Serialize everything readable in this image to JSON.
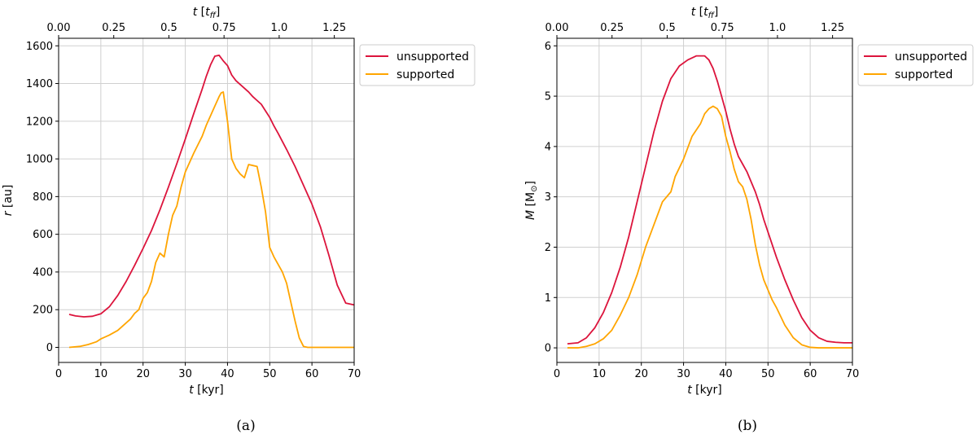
{
  "chart_data": [
    {
      "type": "line",
      "panel": "a",
      "caption": "(a)",
      "xlabel": "t [kyr]",
      "x2label": "t [t_ff]",
      "ylabel": "r [au]",
      "xlim": [
        0,
        70
      ],
      "ylim": [
        -80,
        1640
      ],
      "x2lim": [
        0,
        1.34
      ],
      "xticks": [
        0,
        10,
        20,
        30,
        40,
        50,
        60,
        70
      ],
      "x2ticks": [
        0.0,
        0.25,
        0.5,
        0.75,
        1.0,
        1.25
      ],
      "x2ticklabels": [
        "0.00",
        "0.25",
        "0.5",
        "0.75",
        "1.0",
        "1.25"
      ],
      "yticks": [
        0,
        200,
        400,
        600,
        800,
        1000,
        1200,
        1400,
        1600
      ],
      "grid": true,
      "legend": "top-right, outside",
      "series": [
        {
          "name": "unsupported",
          "color": "#dc143c",
          "x": [
            2.5,
            4,
            6,
            8,
            10,
            12,
            14,
            16,
            18,
            20,
            22,
            24,
            26,
            28,
            30,
            32,
            34,
            35,
            36,
            37,
            38,
            39,
            40,
            41,
            42,
            43,
            44,
            45,
            46,
            47,
            48,
            49,
            50,
            51,
            52,
            54,
            56,
            58,
            60,
            62,
            64,
            66,
            68,
            70
          ],
          "y": [
            175,
            167,
            162,
            165,
            178,
            215,
            275,
            350,
            435,
            525,
            620,
            730,
            850,
            975,
            1105,
            1240,
            1370,
            1440,
            1500,
            1545,
            1550,
            1520,
            1495,
            1445,
            1415,
            1395,
            1375,
            1355,
            1330,
            1310,
            1290,
            1255,
            1220,
            1175,
            1135,
            1050,
            960,
            860,
            760,
            640,
            490,
            330,
            235,
            225
          ]
        },
        {
          "name": "supported",
          "color": "#ffa500",
          "x": [
            2.5,
            5,
            7,
            9,
            10,
            12,
            14,
            15,
            16,
            17,
            18,
            19,
            20,
            21,
            22,
            23,
            24,
            25,
            26,
            27,
            28,
            29,
            30,
            32,
            34,
            35,
            36,
            37,
            38,
            38.5,
            39,
            40,
            41,
            42,
            43,
            44,
            45,
            46,
            47,
            48,
            49,
            50,
            51,
            52,
            53,
            54,
            55,
            56,
            57,
            58,
            59,
            60,
            62,
            65,
            68,
            70
          ],
          "y": [
            0,
            5,
            15,
            30,
            45,
            65,
            90,
            110,
            130,
            150,
            180,
            200,
            260,
            290,
            350,
            450,
            500,
            480,
            600,
            700,
            750,
            850,
            930,
            1030,
            1120,
            1180,
            1230,
            1280,
            1330,
            1350,
            1355,
            1200,
            1000,
            950,
            920,
            900,
            970,
            965,
            960,
            850,
            720,
            530,
            480,
            440,
            400,
            340,
            240,
            140,
            50,
            5,
            0,
            0,
            0,
            0,
            0,
            0
          ]
        }
      ]
    },
    {
      "type": "line",
      "panel": "b",
      "caption": "(b)",
      "xlabel": "t [kyr]",
      "x2label": "t [t_ff]",
      "ylabel": "M [M_sun]",
      "xlim": [
        0,
        70
      ],
      "ylim": [
        -0.29,
        6.15
      ],
      "x2lim": [
        0,
        1.34
      ],
      "xticks": [
        0,
        10,
        20,
        30,
        40,
        50,
        60,
        70
      ],
      "x2ticks": [
        0.0,
        0.25,
        0.5,
        0.75,
        1.0,
        1.25
      ],
      "x2ticklabels": [
        "0.00",
        "0.25",
        "0.5",
        "0.75",
        "1.0",
        "1.25"
      ],
      "yticks": [
        0,
        1,
        2,
        3,
        4,
        5,
        6
      ],
      "grid": true,
      "legend": "top-right, outside",
      "series": [
        {
          "name": "unsupported",
          "color": "#dc143c",
          "x": [
            2.5,
            5,
            7,
            9,
            11,
            13,
            15,
            17,
            19,
            21,
            23,
            25,
            27,
            29,
            31,
            33,
            34,
            35,
            36,
            37,
            38,
            39,
            40,
            41,
            42,
            43,
            44,
            45,
            46,
            47,
            48,
            49,
            50,
            52,
            54,
            56,
            58,
            60,
            62,
            64,
            66,
            68,
            70
          ],
          "y": [
            0.08,
            0.1,
            0.2,
            0.4,
            0.7,
            1.1,
            1.6,
            2.2,
            2.9,
            3.6,
            4.3,
            4.9,
            5.35,
            5.6,
            5.72,
            5.8,
            5.8,
            5.8,
            5.72,
            5.55,
            5.3,
            5.0,
            4.7,
            4.35,
            4.05,
            3.8,
            3.65,
            3.5,
            3.3,
            3.1,
            2.85,
            2.55,
            2.3,
            1.8,
            1.35,
            0.95,
            0.6,
            0.35,
            0.2,
            0.13,
            0.11,
            0.1,
            0.1
          ]
        },
        {
          "name": "supported",
          "color": "#ffa500",
          "x": [
            2.5,
            5,
            7,
            9,
            11,
            13,
            15,
            17,
            19,
            21,
            23,
            25,
            27,
            28,
            30,
            32,
            34,
            35,
            36,
            37,
            38,
            39,
            40,
            41,
            42,
            43,
            44,
            45,
            46,
            47,
            48,
            49,
            50,
            51,
            52,
            54,
            56,
            58,
            60,
            62,
            64,
            66,
            70
          ],
          "y": [
            0.0,
            0.0,
            0.03,
            0.08,
            0.18,
            0.35,
            0.65,
            1.0,
            1.45,
            2.0,
            2.45,
            2.9,
            3.1,
            3.4,
            3.75,
            4.2,
            4.45,
            4.65,
            4.75,
            4.8,
            4.75,
            4.6,
            4.2,
            3.9,
            3.55,
            3.3,
            3.2,
            2.95,
            2.55,
            2.05,
            1.65,
            1.35,
            1.15,
            0.95,
            0.8,
            0.45,
            0.2,
            0.06,
            0.01,
            0.0,
            0.0,
            0.0,
            0.0
          ]
        }
      ]
    }
  ]
}
